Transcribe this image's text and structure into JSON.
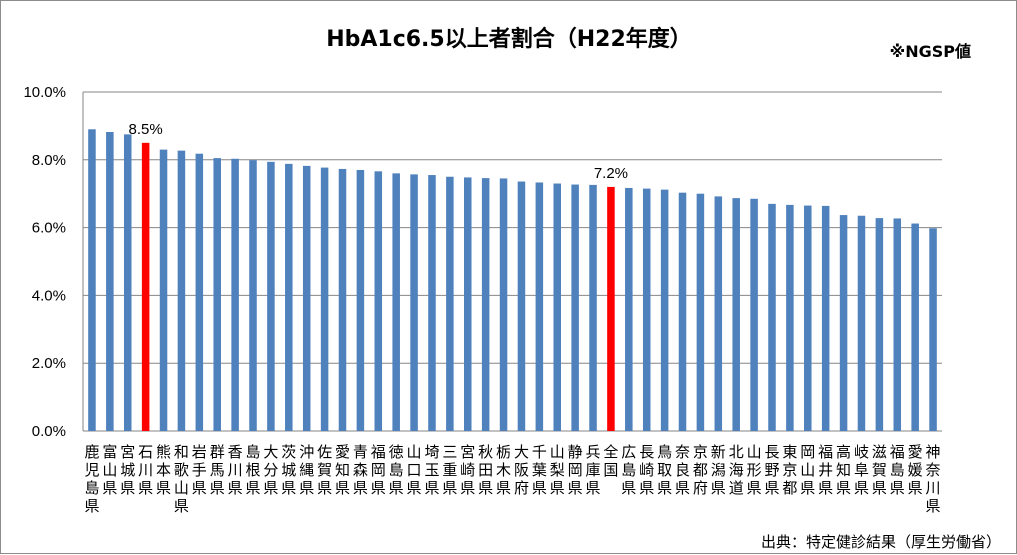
{
  "chart_data": {
    "type": "bar",
    "title": "HbA1c6.5以上者割合（H22年度）",
    "note": "※NGSP値",
    "source": "出典：特定健診結果（厚生労働省）",
    "xlabel": "",
    "ylabel": "",
    "ylim": [
      0,
      10
    ],
    "y_ticks": [
      "0.0%",
      "2.0%",
      "4.0%",
      "6.0%",
      "8.0%",
      "10.0%"
    ],
    "grid": true,
    "legend": "none",
    "colors": {
      "default": "#4f81bd",
      "highlight": "#ff0000",
      "grid": "#868686"
    },
    "categories": [
      "鹿児島県",
      "富山県",
      "宮城県",
      "石川県",
      "熊本県",
      "和歌山県",
      "岩手県",
      "群馬県",
      "香川県",
      "島根県",
      "大分県",
      "茨城県",
      "沖縄県",
      "佐賀県",
      "愛知県",
      "青森県",
      "福岡県",
      "徳島県",
      "山口県",
      "埼玉県",
      "三重県",
      "宮崎県",
      "秋田県",
      "栃木県",
      "大阪府",
      "千葉県",
      "山梨県",
      "静岡県",
      "兵庫県",
      "全国",
      "広島県",
      "長崎県",
      "鳥取県",
      "奈良県",
      "京都府",
      "新潟県",
      "北海道",
      "山形県",
      "長野県",
      "東京都",
      "岡山県",
      "福井県",
      "高知県",
      "岐阜県",
      "滋賀県",
      "福島県",
      "愛媛県",
      "神奈川県"
    ],
    "values": [
      8.9,
      8.82,
      8.75,
      8.5,
      8.3,
      8.27,
      8.18,
      8.05,
      8.03,
      7.99,
      7.94,
      7.88,
      7.82,
      7.77,
      7.73,
      7.7,
      7.66,
      7.6,
      7.57,
      7.55,
      7.5,
      7.48,
      7.46,
      7.45,
      7.36,
      7.33,
      7.3,
      7.27,
      7.26,
      7.2,
      7.17,
      7.15,
      7.12,
      7.03,
      7.0,
      6.92,
      6.87,
      6.85,
      6.7,
      6.67,
      6.65,
      6.64,
      6.37,
      6.35,
      6.28,
      6.27,
      6.12,
      5.98
    ],
    "highlight": [
      "石川県",
      "全国"
    ],
    "data_labels": [
      {
        "category": "石川県",
        "text": "8.5%"
      },
      {
        "category": "全国",
        "text": "7.2%"
      }
    ]
  }
}
